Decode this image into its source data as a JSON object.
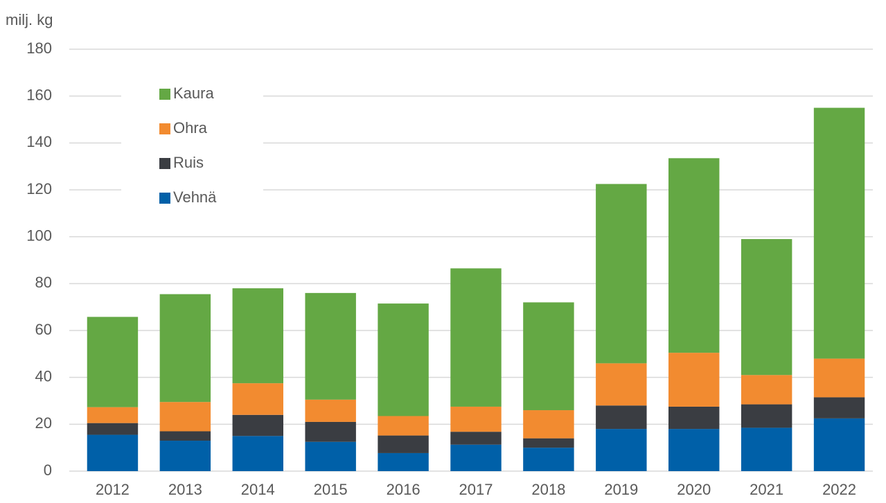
{
  "chart_data": {
    "type": "stacked_bar",
    "y_label": "milj. kg",
    "categories": [
      "2012",
      "2013",
      "2014",
      "2015",
      "2016",
      "2017",
      "2018",
      "2019",
      "2020",
      "2021",
      "2022"
    ],
    "series": [
      {
        "name": "Vehnä",
        "color": "#0060a8",
        "values": [
          15.5,
          13,
          15,
          12.5,
          7.7,
          11.3,
          10,
          18,
          18,
          18.5,
          22.5
        ]
      },
      {
        "name": "Ruis",
        "color": "#3a3d42",
        "values": [
          5,
          4,
          9,
          8.5,
          7.5,
          5.5,
          4,
          10,
          9.5,
          10,
          9
        ]
      },
      {
        "name": "Ohra",
        "color": "#f28b30",
        "values": [
          6.8,
          12.5,
          13.5,
          9.5,
          8.3,
          10.7,
          12,
          18,
          23,
          12.5,
          16.5
        ]
      },
      {
        "name": "Kaura",
        "color": "#64a844",
        "values": [
          38.5,
          46,
          40.5,
          45.5,
          48,
          59,
          46,
          76.5,
          83,
          58,
          107
        ]
      }
    ],
    "ylim": [
      0,
      180
    ],
    "yticks": [
      0,
      20,
      40,
      60,
      80,
      100,
      120,
      140,
      160,
      180
    ],
    "grid": true,
    "legend": "upper left"
  }
}
